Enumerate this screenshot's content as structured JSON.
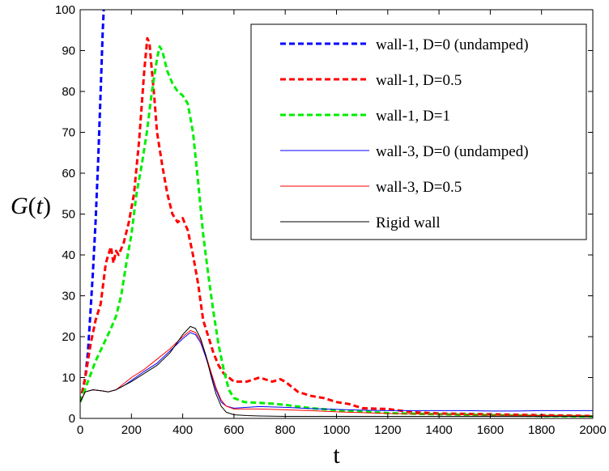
{
  "chart_data": {
    "type": "line",
    "xlabel": "t",
    "ylabel": "G(t)",
    "ylabel_parts": {
      "g": "G",
      "lp": "(",
      "t": "t",
      "rp": ")"
    },
    "xlim": [
      0,
      2000
    ],
    "ylim": [
      0,
      100
    ],
    "xticks": [
      0,
      200,
      400,
      600,
      800,
      1000,
      1200,
      1400,
      1600,
      1800,
      2000
    ],
    "yticks": [
      0,
      10,
      20,
      30,
      40,
      50,
      60,
      70,
      80,
      90,
      100
    ],
    "grid": false,
    "legend_position": "top-right",
    "series": [
      {
        "name": "wall-1, D=0 (undamped)",
        "color": "#0000ff",
        "style": "dashed",
        "width": 3,
        "points": [
          [
            0,
            4
          ],
          [
            10,
            7
          ],
          [
            20,
            10
          ],
          [
            30,
            16
          ],
          [
            40,
            26
          ],
          [
            50,
            36
          ],
          [
            60,
            48
          ],
          [
            70,
            63
          ],
          [
            80,
            80
          ],
          [
            88,
            95
          ],
          [
            92,
            100
          ]
        ]
      },
      {
        "name": "wall-1, D=0.5",
        "color": "#ff0000",
        "style": "dashed",
        "width": 3,
        "points": [
          [
            0,
            4
          ],
          [
            20,
            10
          ],
          [
            40,
            18
          ],
          [
            60,
            24
          ],
          [
            80,
            28
          ],
          [
            100,
            38
          ],
          [
            110,
            40
          ],
          [
            120,
            42
          ],
          [
            130,
            38
          ],
          [
            140,
            41
          ],
          [
            150,
            40
          ],
          [
            170,
            43
          ],
          [
            190,
            48
          ],
          [
            210,
            55
          ],
          [
            230,
            68
          ],
          [
            250,
            85
          ],
          [
            262,
            93
          ],
          [
            270,
            92
          ],
          [
            280,
            85
          ],
          [
            290,
            78
          ],
          [
            300,
            70
          ],
          [
            320,
            62
          ],
          [
            340,
            55
          ],
          [
            360,
            50
          ],
          [
            380,
            48
          ],
          [
            400,
            49
          ],
          [
            420,
            46
          ],
          [
            440,
            40
          ],
          [
            460,
            33
          ],
          [
            480,
            24
          ],
          [
            500,
            20
          ],
          [
            520,
            16
          ],
          [
            540,
            13
          ],
          [
            560,
            11
          ],
          [
            580,
            10
          ],
          [
            600,
            9
          ],
          [
            650,
            9
          ],
          [
            700,
            10
          ],
          [
            750,
            9
          ],
          [
            780,
            9.6
          ],
          [
            800,
            9
          ],
          [
            850,
            6.5
          ],
          [
            900,
            5.5
          ],
          [
            950,
            5
          ],
          [
            1000,
            4
          ],
          [
            1050,
            3.5
          ],
          [
            1100,
            2.5
          ],
          [
            1200,
            2.3
          ],
          [
            1300,
            1.5
          ],
          [
            1400,
            1.2
          ],
          [
            1600,
            1
          ],
          [
            1800,
            0.8
          ],
          [
            2000,
            0.6
          ]
        ]
      },
      {
        "name": "wall-1, D=1",
        "color": "#00ee00",
        "style": "dashed",
        "width": 3,
        "points": [
          [
            0,
            4
          ],
          [
            30,
            9
          ],
          [
            60,
            14
          ],
          [
            90,
            18
          ],
          [
            120,
            22
          ],
          [
            140,
            25
          ],
          [
            160,
            30
          ],
          [
            180,
            38
          ],
          [
            200,
            45
          ],
          [
            220,
            55
          ],
          [
            240,
            62
          ],
          [
            260,
            70
          ],
          [
            280,
            80
          ],
          [
            300,
            88
          ],
          [
            310,
            91
          ],
          [
            320,
            90
          ],
          [
            340,
            85
          ],
          [
            360,
            82
          ],
          [
            380,
            80
          ],
          [
            400,
            79
          ],
          [
            420,
            77
          ],
          [
            440,
            70
          ],
          [
            460,
            58
          ],
          [
            480,
            45
          ],
          [
            500,
            35
          ],
          [
            520,
            26
          ],
          [
            540,
            18
          ],
          [
            560,
            12
          ],
          [
            580,
            7
          ],
          [
            600,
            5
          ],
          [
            640,
            4
          ],
          [
            700,
            3.8
          ],
          [
            750,
            3.6
          ],
          [
            800,
            3.3
          ],
          [
            900,
            2.5
          ],
          [
            1000,
            2
          ],
          [
            1200,
            1.3
          ],
          [
            1400,
            1
          ],
          [
            1600,
            0.8
          ],
          [
            1800,
            0.6
          ],
          [
            2000,
            0.5
          ]
        ]
      },
      {
        "name": "wall-3, D=0 (undamped)",
        "color": "#0000ff",
        "style": "solid",
        "width": 1,
        "points": [
          [
            0,
            4
          ],
          [
            20,
            6.5
          ],
          [
            50,
            7
          ],
          [
            80,
            6.8
          ],
          [
            110,
            6.5
          ],
          [
            140,
            7
          ],
          [
            170,
            8
          ],
          [
            200,
            9.3
          ],
          [
            250,
            11.5
          ],
          [
            300,
            13.5
          ],
          [
            350,
            16.5
          ],
          [
            400,
            19.5
          ],
          [
            430,
            21
          ],
          [
            450,
            20.5
          ],
          [
            470,
            18.5
          ],
          [
            490,
            15
          ],
          [
            510,
            11
          ],
          [
            530,
            7
          ],
          [
            550,
            4
          ],
          [
            570,
            3
          ],
          [
            600,
            2.5
          ],
          [
            650,
            2.7
          ],
          [
            700,
            2.9
          ],
          [
            800,
            2.7
          ],
          [
            900,
            2.4
          ],
          [
            1000,
            2.2
          ],
          [
            1100,
            2
          ],
          [
            1200,
            1.9
          ],
          [
            1300,
            1.9
          ],
          [
            1400,
            1.9
          ],
          [
            1500,
            1.9
          ],
          [
            1600,
            1.8
          ],
          [
            1700,
            1.8
          ],
          [
            1800,
            1.9
          ],
          [
            1900,
            1.9
          ],
          [
            2000,
            1.9
          ]
        ]
      },
      {
        "name": "wall-3, D=0.5",
        "color": "#ff0000",
        "style": "solid",
        "width": 1,
        "points": [
          [
            0,
            4
          ],
          [
            20,
            6.5
          ],
          [
            50,
            7
          ],
          [
            80,
            6.8
          ],
          [
            110,
            6.5
          ],
          [
            140,
            7
          ],
          [
            170,
            8.5
          ],
          [
            200,
            10
          ],
          [
            250,
            12
          ],
          [
            300,
            14.5
          ],
          [
            350,
            17
          ],
          [
            400,
            20
          ],
          [
            430,
            21.5
          ],
          [
            450,
            21
          ],
          [
            470,
            19
          ],
          [
            490,
            15.5
          ],
          [
            510,
            11.5
          ],
          [
            530,
            7.5
          ],
          [
            550,
            4.5
          ],
          [
            570,
            3
          ],
          [
            600,
            2.3
          ],
          [
            700,
            2.3
          ],
          [
            800,
            2.1
          ],
          [
            900,
            1.9
          ],
          [
            1000,
            1.6
          ],
          [
            1200,
            1.2
          ],
          [
            1400,
            1
          ],
          [
            1600,
            0.8
          ],
          [
            1800,
            0.7
          ],
          [
            2000,
            0.6
          ]
        ]
      },
      {
        "name": "Rigid wall",
        "color": "#000000",
        "style": "solid",
        "width": 1,
        "points": [
          [
            0,
            4
          ],
          [
            20,
            6.5
          ],
          [
            50,
            7
          ],
          [
            80,
            6.8
          ],
          [
            110,
            6.5
          ],
          [
            140,
            7
          ],
          [
            170,
            8
          ],
          [
            200,
            9
          ],
          [
            250,
            11
          ],
          [
            300,
            13
          ],
          [
            350,
            16
          ],
          [
            400,
            20.5
          ],
          [
            430,
            22.5
          ],
          [
            450,
            22
          ],
          [
            470,
            19.5
          ],
          [
            490,
            15.5
          ],
          [
            510,
            10.5
          ],
          [
            530,
            6
          ],
          [
            550,
            3
          ],
          [
            570,
            1.5
          ],
          [
            600,
            0.9
          ],
          [
            650,
            0.7
          ],
          [
            700,
            0.6
          ],
          [
            800,
            0.5
          ],
          [
            1000,
            0.5
          ],
          [
            1200,
            0.5
          ],
          [
            1400,
            0.5
          ],
          [
            1600,
            0.5
          ],
          [
            1800,
            0.5
          ],
          [
            2000,
            0.5
          ]
        ]
      }
    ]
  }
}
